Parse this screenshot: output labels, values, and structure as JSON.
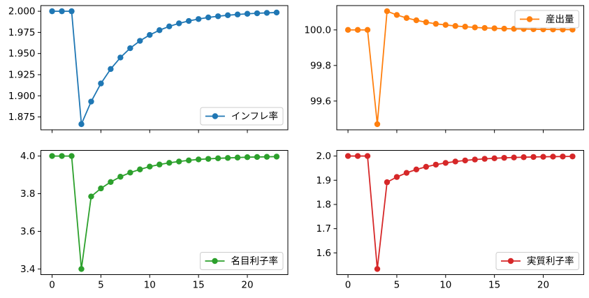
{
  "chart_data": [
    {
      "type": "line",
      "series_name": "インフレ率",
      "color": "#1f77b4",
      "legend_loc": "lower-right",
      "x": [
        0,
        1,
        2,
        3,
        4,
        5,
        6,
        7,
        8,
        9,
        10,
        11,
        12,
        13,
        14,
        15,
        16,
        17,
        18,
        19,
        20,
        21,
        22,
        23
      ],
      "y": [
        2.0,
        2.0,
        2.0,
        1.8665,
        1.8932,
        1.9146,
        1.9317,
        1.9453,
        1.9563,
        1.965,
        1.972,
        1.9776,
        1.9821,
        1.9857,
        1.9885,
        1.9908,
        1.9927,
        1.9941,
        1.9953,
        1.9962,
        1.997,
        1.9976,
        1.9981,
        1.9985
      ],
      "xlim": [
        -1.15,
        24.15
      ],
      "ylim": [
        1.8598,
        2.0067
      ],
      "yticks": {
        "values": [
          1.875,
          1.9,
          1.925,
          1.95,
          1.975,
          2.0
        ],
        "labels": [
          "1.875",
          "1.900",
          "1.925",
          "1.950",
          "1.975",
          "2.000"
        ]
      },
      "xticks": {
        "values": [
          0,
          5,
          10,
          15,
          20
        ],
        "labels": [
          "0",
          "5",
          "10",
          "15",
          "20"
        ],
        "show_labels": false
      },
      "grid": false
    },
    {
      "type": "line",
      "series_name": "産出量",
      "color": "#ff7f0e",
      "legend_loc": "upper-right",
      "x": [
        0,
        1,
        2,
        3,
        4,
        5,
        6,
        7,
        8,
        9,
        10,
        11,
        12,
        13,
        14,
        15,
        16,
        17,
        18,
        19,
        20,
        21,
        22,
        23
      ],
      "y": [
        100.0,
        100.0,
        100.0,
        99.47,
        100.105,
        100.084,
        100.067,
        100.054,
        100.043,
        100.034,
        100.028,
        100.022,
        100.018,
        100.014,
        100.011,
        100.009,
        100.007,
        100.006,
        100.005,
        100.004,
        100.003,
        100.0025,
        100.002,
        100.0015
      ],
      "xlim": [
        -1.15,
        24.15
      ],
      "ylim": [
        99.4383,
        100.1367
      ],
      "yticks": {
        "values": [
          99.6,
          99.8,
          100.0
        ],
        "labels": [
          "99.6",
          "99.8",
          "100.0"
        ]
      },
      "xticks": {
        "values": [
          0,
          5,
          10,
          15,
          20
        ],
        "labels": [
          "0",
          "5",
          "10",
          "15",
          "20"
        ],
        "show_labels": false
      },
      "grid": false
    },
    {
      "type": "line",
      "series_name": "名目利子率",
      "color": "#2ca02c",
      "legend_loc": "lower-right",
      "x": [
        0,
        1,
        2,
        3,
        4,
        5,
        6,
        7,
        8,
        9,
        10,
        11,
        12,
        13,
        14,
        15,
        16,
        17,
        18,
        19,
        20,
        21,
        22,
        23
      ],
      "y": [
        4.0,
        4.0,
        4.0,
        3.4,
        3.785,
        3.828,
        3.862,
        3.89,
        3.912,
        3.929,
        3.944,
        3.955,
        3.964,
        3.971,
        3.977,
        3.982,
        3.985,
        3.988,
        3.99,
        3.992,
        3.994,
        3.995,
        3.996,
        3.997
      ],
      "xlim": [
        -1.15,
        24.15
      ],
      "ylim": [
        3.37,
        4.03
      ],
      "yticks": {
        "values": [
          3.4,
          3.6,
          3.8,
          4.0
        ],
        "labels": [
          "3.4",
          "3.6",
          "3.8",
          "4.0"
        ]
      },
      "xticks": {
        "values": [
          0,
          5,
          10,
          15,
          20
        ],
        "labels": [
          "0",
          "5",
          "10",
          "15",
          "20"
        ],
        "show_labels": true
      },
      "grid": false
    },
    {
      "type": "line",
      "series_name": "実質利子率",
      "color": "#d62728",
      "legend_loc": "lower-right",
      "x": [
        0,
        1,
        2,
        3,
        4,
        5,
        6,
        7,
        8,
        9,
        10,
        11,
        12,
        13,
        14,
        15,
        16,
        17,
        18,
        19,
        20,
        21,
        22,
        23
      ],
      "y": [
        2.0,
        2.0,
        2.0,
        1.5335,
        1.8918,
        1.9134,
        1.9306,
        1.9445,
        1.9556,
        1.9645,
        1.9716,
        1.9773,
        1.9818,
        1.9855,
        1.9884,
        1.9907,
        1.9926,
        1.994,
        1.9952,
        1.9962,
        1.9969,
        1.9975,
        1.998,
        1.9984
      ],
      "xlim": [
        -1.15,
        24.15
      ],
      "ylim": [
        1.5102,
        2.0233
      ],
      "yticks": {
        "values": [
          1.6,
          1.7,
          1.8,
          1.9,
          2.0
        ],
        "labels": [
          "1.6",
          "1.7",
          "1.8",
          "1.9",
          "2.0"
        ]
      },
      "xticks": {
        "values": [
          0,
          5,
          10,
          15,
          20
        ],
        "labels": [
          "0",
          "5",
          "10",
          "15",
          "20"
        ],
        "show_labels": true
      },
      "grid": false
    }
  ]
}
